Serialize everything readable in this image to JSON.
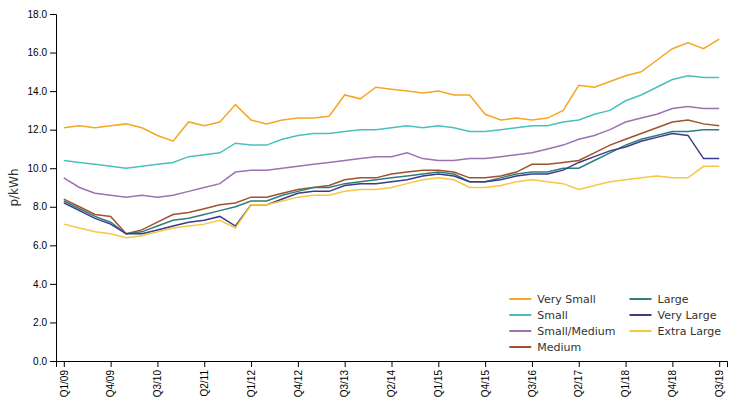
{
  "chart_data": {
    "type": "line",
    "ylabel": "p/kWh",
    "categories": [
      "Q1/09",
      null,
      null,
      "Q4/09",
      null,
      null,
      "Q3/10",
      null,
      null,
      "Q2/11",
      null,
      null,
      "Q1/12",
      null,
      null,
      "Q4/12",
      null,
      null,
      "Q3/13",
      null,
      null,
      "Q2/14",
      null,
      null,
      "Q1/15",
      null,
      null,
      "Q4/15",
      null,
      null,
      "Q3/16",
      null,
      null,
      "Q2/17",
      null,
      null,
      "Q1/18",
      null,
      null,
      "Q4/18",
      null,
      null,
      "Q3/19"
    ],
    "series": [
      {
        "name": "Very Small",
        "color": "#F5A623",
        "values": [
          12.1,
          12.2,
          12.1,
          12.2,
          12.3,
          12.1,
          11.7,
          11.4,
          12.4,
          12.2,
          12.4,
          13.3,
          12.5,
          12.3,
          12.5,
          12.6,
          12.6,
          12.7,
          13.8,
          13.6,
          14.2,
          14.1,
          14.0,
          13.9,
          14.0,
          13.8,
          13.8,
          12.8,
          12.5,
          12.6,
          12.5,
          12.6,
          13.0,
          14.3,
          14.2,
          14.5,
          14.8,
          15.0,
          15.6,
          16.2,
          16.5,
          16.2,
          16.7
        ]
      },
      {
        "name": "Small",
        "color": "#4BBFBF",
        "values": [
          10.4,
          10.3,
          10.2,
          10.1,
          10.0,
          10.1,
          10.2,
          10.3,
          10.6,
          10.7,
          10.8,
          11.3,
          11.2,
          11.2,
          11.5,
          11.7,
          11.8,
          11.8,
          11.9,
          12.0,
          12.0,
          12.1,
          12.2,
          12.1,
          12.2,
          12.1,
          11.9,
          11.9,
          12.0,
          12.1,
          12.2,
          12.2,
          12.4,
          12.5,
          12.8,
          13.0,
          13.5,
          13.8,
          14.2,
          14.6,
          14.8,
          14.7,
          14.7
        ]
      },
      {
        "name": "Small/Medium",
        "color": "#9B72B0",
        "values": [
          9.5,
          9.0,
          8.7,
          8.6,
          8.5,
          8.6,
          8.5,
          8.6,
          8.8,
          9.0,
          9.2,
          9.8,
          9.9,
          9.9,
          10.0,
          10.1,
          10.2,
          10.3,
          10.4,
          10.5,
          10.6,
          10.6,
          10.8,
          10.5,
          10.4,
          10.4,
          10.5,
          10.5,
          10.6,
          10.7,
          10.8,
          11.0,
          11.2,
          11.5,
          11.7,
          12.0,
          12.4,
          12.6,
          12.8,
          13.1,
          13.2,
          13.1,
          13.1
        ]
      },
      {
        "name": "Medium",
        "color": "#A0522D",
        "values": [
          8.4,
          8.0,
          7.6,
          7.5,
          6.6,
          6.8,
          7.2,
          7.6,
          7.7,
          7.9,
          8.1,
          8.2,
          8.5,
          8.5,
          8.7,
          8.9,
          9.0,
          9.1,
          9.4,
          9.5,
          9.5,
          9.7,
          9.8,
          9.9,
          9.9,
          9.8,
          9.5,
          9.5,
          9.6,
          9.8,
          10.2,
          10.2,
          10.3,
          10.4,
          10.8,
          11.2,
          11.5,
          11.8,
          12.1,
          12.4,
          12.5,
          12.3,
          12.2
        ]
      },
      {
        "name": "Large",
        "color": "#2E7E7E",
        "values": [
          8.3,
          7.9,
          7.5,
          7.2,
          6.6,
          6.7,
          7.0,
          7.3,
          7.4,
          7.6,
          7.8,
          8.0,
          8.3,
          8.3,
          8.6,
          8.8,
          9.0,
          9.0,
          9.2,
          9.3,
          9.4,
          9.5,
          9.6,
          9.7,
          9.8,
          9.7,
          9.3,
          9.3,
          9.5,
          9.7,
          9.8,
          9.8,
          10.0,
          10.0,
          10.4,
          10.8,
          11.2,
          11.5,
          11.7,
          11.9,
          11.9,
          12.0,
          12.0
        ]
      },
      {
        "name": "Very Large",
        "color": "#3B3B8C",
        "values": [
          8.2,
          7.8,
          7.4,
          7.1,
          6.6,
          6.6,
          6.8,
          7.0,
          7.2,
          7.3,
          7.5,
          7.0,
          8.1,
          8.1,
          8.4,
          8.7,
          8.8,
          8.8,
          9.1,
          9.2,
          9.2,
          9.3,
          9.4,
          9.6,
          9.7,
          9.6,
          9.3,
          9.3,
          9.4,
          9.6,
          9.7,
          9.7,
          9.9,
          10.3,
          10.6,
          10.9,
          11.1,
          11.4,
          11.6,
          11.8,
          11.7,
          10.5,
          10.5
        ]
      },
      {
        "name": "Extra Large",
        "color": "#F5C842",
        "values": [
          7.1,
          6.9,
          6.7,
          6.6,
          6.4,
          6.5,
          6.7,
          6.9,
          7.0,
          7.1,
          7.3,
          6.9,
          8.1,
          8.1,
          8.3,
          8.5,
          8.6,
          8.6,
          8.8,
          8.9,
          8.9,
          9.0,
          9.2,
          9.4,
          9.5,
          9.4,
          9.0,
          9.0,
          9.1,
          9.3,
          9.4,
          9.3,
          9.2,
          8.9,
          9.1,
          9.3,
          9.4,
          9.5,
          9.6,
          9.5,
          9.5,
          10.1,
          10.1
        ]
      }
    ],
    "ylim": [
      0.0,
      18.0
    ],
    "yticks": [
      {
        "value": 0,
        "label": "0.0"
      },
      {
        "value": 2,
        "label": "2.0"
      },
      {
        "value": 4,
        "label": "4.0"
      },
      {
        "value": 6,
        "label": "6.0"
      },
      {
        "value": 8,
        "label": "8.0"
      },
      {
        "value": 10,
        "label": "10.0"
      },
      {
        "value": 12,
        "label": "12.0"
      },
      {
        "value": 14,
        "label": "14.0"
      },
      {
        "value": 16,
        "label": "16.0"
      },
      {
        "value": 18,
        "label": "18.0"
      }
    ],
    "grid": false,
    "legend": "lower right"
  }
}
